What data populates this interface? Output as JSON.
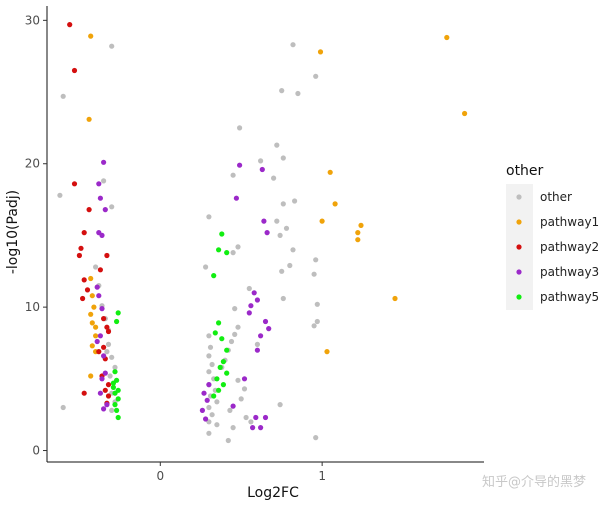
{
  "chart_data": {
    "type": "scatter",
    "xlabel": "Log2FC",
    "ylabel": "-log10(Padj)",
    "xlim": [
      -0.7,
      2.0
    ],
    "ylim": [
      -0.8,
      31.0
    ],
    "x_ticks": [
      0,
      1
    ],
    "x_tick_labels": [
      "0",
      "1"
    ],
    "y_ticks": [
      0,
      10,
      20,
      30
    ],
    "y_tick_labels": [
      "0",
      "10",
      "20",
      "30"
    ],
    "grid": false,
    "legend": {
      "title": "other",
      "position": "right",
      "entries": [
        "other",
        "pathway1",
        "pathway2",
        "pathway3",
        "pathway5"
      ]
    },
    "series": [
      {
        "name": "other",
        "color": "#bebebe",
        "points": [
          [
            -0.62,
            17.8
          ],
          [
            -0.6,
            24.7
          ],
          [
            -0.6,
            3.0
          ],
          [
            -0.3,
            28.2
          ],
          [
            -0.35,
            18.8
          ],
          [
            -0.3,
            17.0
          ],
          [
            -0.28,
            5.8
          ],
          [
            -0.3,
            6.5
          ],
          [
            -0.32,
            7.4
          ],
          [
            -0.32,
            8.4
          ],
          [
            -0.3,
            4.0
          ],
          [
            -0.28,
            3.4
          ],
          [
            -0.3,
            2.8
          ],
          [
            -0.34,
            9.2
          ],
          [
            -0.36,
            10.1
          ],
          [
            -0.38,
            11.5
          ],
          [
            -0.4,
            12.8
          ],
          [
            -0.33,
            6.9
          ],
          [
            -0.31,
            5.2
          ],
          [
            0.3,
            16.3
          ],
          [
            0.28,
            12.8
          ],
          [
            0.3,
            8.0
          ],
          [
            0.31,
            7.2
          ],
          [
            0.3,
            6.6
          ],
          [
            0.32,
            6.0
          ],
          [
            0.3,
            5.5
          ],
          [
            0.33,
            5.0
          ],
          [
            0.3,
            4.6
          ],
          [
            0.34,
            4.2
          ],
          [
            0.31,
            3.8
          ],
          [
            0.35,
            3.4
          ],
          [
            0.3,
            3.0
          ],
          [
            0.32,
            2.5
          ],
          [
            0.3,
            2.0
          ],
          [
            0.35,
            1.8
          ],
          [
            0.3,
            1.2
          ],
          [
            0.38,
            5.8
          ],
          [
            0.4,
            6.3
          ],
          [
            0.42,
            7.0
          ],
          [
            0.44,
            7.6
          ],
          [
            0.46,
            8.1
          ],
          [
            0.48,
            8.6
          ],
          [
            0.46,
            9.9
          ],
          [
            0.45,
            13.8
          ],
          [
            0.48,
            14.2
          ],
          [
            0.45,
            19.2
          ],
          [
            0.49,
            22.5
          ],
          [
            0.43,
            2.8
          ],
          [
            0.45,
            1.6
          ],
          [
            0.42,
            0.7
          ],
          [
            0.52,
            4.3
          ],
          [
            0.5,
            3.6
          ],
          [
            0.48,
            4.9
          ],
          [
            0.55,
            11.3
          ],
          [
            0.6,
            7.4
          ],
          [
            0.62,
            20.2
          ],
          [
            0.7,
            19.0
          ],
          [
            0.72,
            21.3
          ],
          [
            0.76,
            20.4
          ],
          [
            0.72,
            16.0
          ],
          [
            0.74,
            15.0
          ],
          [
            0.78,
            15.5
          ],
          [
            0.82,
            14.0
          ],
          [
            0.8,
            12.9
          ],
          [
            0.75,
            12.5
          ],
          [
            0.76,
            10.6
          ],
          [
            0.83,
            17.4
          ],
          [
            0.76,
            17.2
          ],
          [
            0.85,
            24.9
          ],
          [
            0.75,
            25.1
          ],
          [
            0.82,
            28.3
          ],
          [
            0.96,
            26.1
          ],
          [
            0.97,
            9.0
          ],
          [
            0.95,
            8.7
          ],
          [
            0.97,
            10.2
          ],
          [
            0.95,
            12.3
          ],
          [
            0.96,
            13.3
          ],
          [
            0.96,
            0.9
          ],
          [
            0.74,
            3.2
          ],
          [
            0.53,
            2.3
          ],
          [
            0.56,
            2.0
          ]
        ]
      },
      {
        "name": "pathway1",
        "color": "#f0a30a",
        "points": [
          [
            -0.43,
            28.9
          ],
          [
            -0.44,
            23.1
          ],
          [
            -0.43,
            12.0
          ],
          [
            -0.42,
            10.8
          ],
          [
            -0.41,
            10.0
          ],
          [
            -0.43,
            9.5
          ],
          [
            -0.42,
            8.9
          ],
          [
            -0.4,
            8.6
          ],
          [
            -0.4,
            8.0
          ],
          [
            -0.42,
            7.3
          ],
          [
            -0.4,
            6.9
          ],
          [
            -0.43,
            5.2
          ],
          [
            0.99,
            27.8
          ],
          [
            1.77,
            28.8
          ],
          [
            1.88,
            23.5
          ],
          [
            1.05,
            19.4
          ],
          [
            1.08,
            17.2
          ],
          [
            1.0,
            16.0
          ],
          [
            1.22,
            15.2
          ],
          [
            1.24,
            15.7
          ],
          [
            1.22,
            14.7
          ],
          [
            1.45,
            10.6
          ],
          [
            1.03,
            6.9
          ]
        ]
      },
      {
        "name": "pathway2",
        "color": "#d40f0f",
        "points": [
          [
            -0.56,
            29.7
          ],
          [
            -0.53,
            26.5
          ],
          [
            -0.53,
            18.6
          ],
          [
            -0.49,
            14.1
          ],
          [
            -0.47,
            15.2
          ],
          [
            -0.44,
            16.8
          ],
          [
            -0.5,
            13.6
          ],
          [
            -0.45,
            11.2
          ],
          [
            -0.48,
            10.6
          ],
          [
            -0.47,
            11.9
          ],
          [
            -0.37,
            12.6
          ],
          [
            -0.33,
            13.6
          ],
          [
            -0.35,
            9.2
          ],
          [
            -0.33,
            8.6
          ],
          [
            -0.32,
            8.3
          ],
          [
            -0.35,
            7.2
          ],
          [
            -0.38,
            6.9
          ],
          [
            -0.34,
            6.4
          ],
          [
            -0.36,
            5.2
          ],
          [
            -0.32,
            4.6
          ],
          [
            -0.34,
            4.2
          ],
          [
            -0.32,
            3.8
          ],
          [
            -0.33,
            3.3
          ],
          [
            -0.47,
            4.0
          ]
        ]
      },
      {
        "name": "pathway3",
        "color": "#9b29c9",
        "points": [
          [
            -0.35,
            20.1
          ],
          [
            -0.38,
            18.6
          ],
          [
            -0.37,
            17.6
          ],
          [
            -0.34,
            16.8
          ],
          [
            -0.38,
            15.2
          ],
          [
            -0.36,
            15.0
          ],
          [
            -0.39,
            11.4
          ],
          [
            -0.38,
            10.8
          ],
          [
            -0.36,
            9.9
          ],
          [
            -0.37,
            8.0
          ],
          [
            -0.39,
            7.6
          ],
          [
            -0.35,
            6.6
          ],
          [
            -0.34,
            5.4
          ],
          [
            -0.36,
            5.0
          ],
          [
            -0.37,
            4.0
          ],
          [
            -0.33,
            3.2
          ],
          [
            -0.35,
            2.9
          ],
          [
            0.49,
            19.9
          ],
          [
            0.47,
            17.6
          ],
          [
            0.63,
            19.6
          ],
          [
            0.64,
            16.0
          ],
          [
            0.66,
            15.2
          ],
          [
            0.58,
            11.0
          ],
          [
            0.6,
            10.5
          ],
          [
            0.56,
            10.1
          ],
          [
            0.55,
            9.6
          ],
          [
            0.65,
            9.0
          ],
          [
            0.67,
            8.5
          ],
          [
            0.62,
            8.0
          ],
          [
            0.6,
            7.0
          ],
          [
            0.52,
            5.0
          ],
          [
            0.45,
            3.1
          ],
          [
            0.3,
            4.6
          ],
          [
            0.27,
            4.0
          ],
          [
            0.29,
            3.5
          ],
          [
            0.26,
            2.8
          ],
          [
            0.28,
            2.2
          ],
          [
            0.57,
            1.6
          ],
          [
            0.62,
            1.6
          ],
          [
            0.59,
            2.3
          ],
          [
            0.65,
            2.3
          ]
        ]
      },
      {
        "name": "pathway5",
        "color": "#11ee11",
        "points": [
          [
            -0.26,
            9.6
          ],
          [
            -0.27,
            9.0
          ],
          [
            -0.28,
            5.5
          ],
          [
            -0.27,
            4.9
          ],
          [
            -0.29,
            4.4
          ],
          [
            -0.28,
            4.0
          ],
          [
            -0.26,
            3.6
          ],
          [
            -0.28,
            3.2
          ],
          [
            -0.27,
            2.8
          ],
          [
            -0.26,
            2.3
          ],
          [
            -0.29,
            4.7
          ],
          [
            -0.26,
            4.2
          ],
          [
            0.38,
            15.1
          ],
          [
            0.36,
            14.0
          ],
          [
            0.41,
            13.8
          ],
          [
            0.33,
            12.2
          ],
          [
            0.36,
            8.9
          ],
          [
            0.34,
            8.2
          ],
          [
            0.38,
            7.8
          ],
          [
            0.41,
            7.0
          ],
          [
            0.39,
            6.2
          ],
          [
            0.37,
            5.8
          ],
          [
            0.41,
            5.4
          ],
          [
            0.35,
            5.0
          ],
          [
            0.39,
            4.6
          ],
          [
            0.36,
            4.2
          ],
          [
            0.33,
            3.8
          ]
        ]
      }
    ],
    "watermark_text": "知乎@介导的黑梦"
  }
}
